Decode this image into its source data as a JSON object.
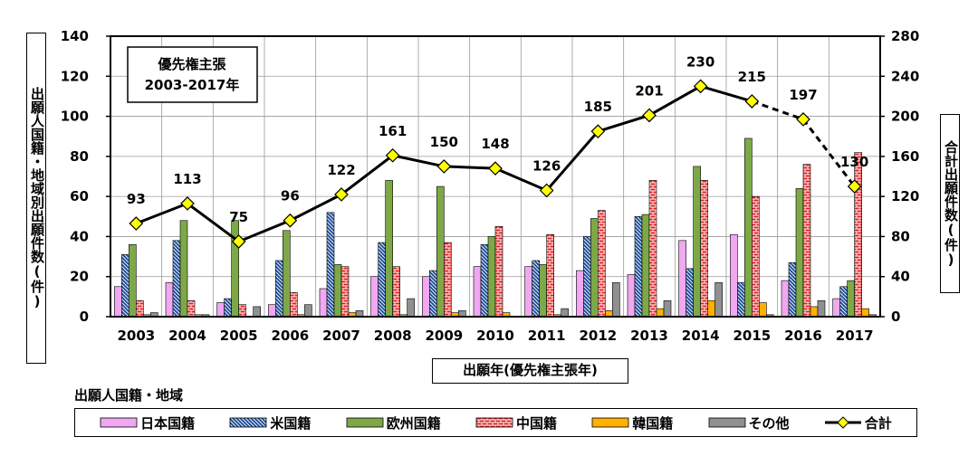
{
  "chart_data": {
    "type": "bar",
    "title_box": [
      "優先権主張",
      "2003-2017年"
    ],
    "categories": [
      "2003",
      "2004",
      "2005",
      "2006",
      "2007",
      "2008",
      "2009",
      "2010",
      "2011",
      "2012",
      "2013",
      "2014",
      "2015",
      "2016",
      "2017"
    ],
    "series": [
      {
        "name": "日本国籍",
        "color": "#f0a8f0",
        "pattern": "solid",
        "values": [
          15,
          17,
          7,
          6,
          14,
          20,
          20,
          25,
          25,
          23,
          21,
          38,
          41,
          18,
          9
        ]
      },
      {
        "name": "米国籍",
        "color": "#1f4e9a",
        "pattern": "hatch",
        "values": [
          31,
          38,
          9,
          28,
          52,
          37,
          23,
          36,
          28,
          40,
          50,
          24,
          17,
          27,
          15
        ]
      },
      {
        "name": "欧州国籍",
        "color": "#7ea848",
        "pattern": "solid",
        "values": [
          36,
          48,
          48,
          43,
          26,
          68,
          65,
          40,
          26,
          49,
          51,
          75,
          89,
          64,
          18
        ]
      },
      {
        "name": "中国籍",
        "color": "#e02020",
        "pattern": "brick",
        "values": [
          8,
          8,
          6,
          12,
          25,
          25,
          37,
          45,
          41,
          53,
          68,
          68,
          60,
          76,
          82
        ]
      },
      {
        "name": "韓国籍",
        "color": "#ffb000",
        "pattern": "solid",
        "values": [
          1,
          1,
          0,
          1,
          2,
          1,
          2,
          2,
          1,
          3,
          4,
          8,
          7,
          5,
          4
        ]
      },
      {
        "name": "その他",
        "color": "#909090",
        "pattern": "solid",
        "values": [
          2,
          1,
          5,
          6,
          3,
          9,
          3,
          0,
          4,
          17,
          8,
          17,
          1,
          8,
          1
        ]
      }
    ],
    "total": {
      "name": "合計",
      "values": [
        93,
        113,
        75,
        96,
        122,
        161,
        150,
        148,
        126,
        185,
        201,
        230,
        215,
        197,
        130
      ],
      "dashed_from_index": 12
    },
    "ylabel": "出願人国籍・地域別出願件数(件)",
    "y2label": "合計出願件数(件)",
    "xlabel": "出願年(優先権主張年)",
    "ylim": [
      0,
      140
    ],
    "y2lim": [
      0,
      280
    ],
    "yticks": [
      "0",
      "20",
      "40",
      "60",
      "80",
      "100",
      "120",
      "140"
    ],
    "y2ticks": [
      "0",
      "40",
      "80",
      "120",
      "160",
      "200",
      "240",
      "280"
    ],
    "legend_title": "出願人国籍・地域",
    "legend_position": "bottom",
    "grid": true
  }
}
